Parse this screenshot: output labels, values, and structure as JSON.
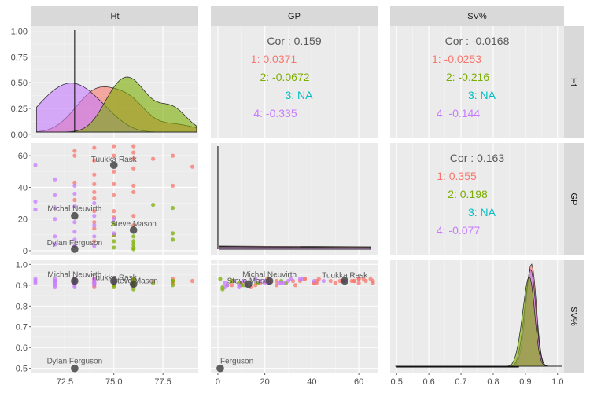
{
  "chart_data": {
    "type": "scatter",
    "variables": [
      "Ht",
      "GP",
      "SV%"
    ],
    "axes": {
      "Ht": {
        "range": [
          70.8,
          79.3
        ],
        "ticks": [
          72.5,
          75.0,
          77.5
        ],
        "tick_labels": [
          "72.5",
          "75.0",
          "77.5"
        ]
      },
      "GP": {
        "range": [
          -3,
          68
        ],
        "ticks": [
          0,
          20,
          40,
          60
        ],
        "tick_labels": [
          "0",
          "20",
          "40",
          "60"
        ]
      },
      "SV%": {
        "range": [
          0.48,
          1.02
        ],
        "ticks": [
          0.5,
          0.6,
          0.7,
          0.8,
          0.9,
          1.0
        ],
        "tick_labels": [
          "0.5",
          "0.6",
          "0.7",
          "0.8",
          "0.9",
          "1.0"
        ],
        "left_tick_labels": [
          "0.5",
          "0.6",
          "0.7",
          "0.8",
          "0.9",
          "1.0"
        ]
      },
      "density": {
        "range": [
          -0.04,
          1.05
        ],
        "ticks": [
          0.0,
          0.25,
          0.5,
          0.75,
          1.0
        ],
        "tick_labels": [
          "0.00",
          "0.25",
          "0.50",
          "0.75",
          "1.00"
        ]
      }
    },
    "grid": true,
    "legend": "none",
    "groups": [
      {
        "id": "1",
        "color": "#F8766D"
      },
      {
        "id": "2",
        "color": "#7CAE00"
      },
      {
        "id": "3",
        "color": "#00BFC4"
      },
      {
        "id": "4",
        "color": "#C77CFF"
      }
    ],
    "correlations": {
      "GP_Ht": {
        "overall": "Cor : 0.159",
        "groups": [
          "1: 0.0371",
          "2: -0.0672",
          "3: NA",
          "4: -0.335"
        ]
      },
      "SV_Ht": {
        "overall": "Cor : -0.0168",
        "groups": [
          "1: -0.0253",
          "2: -0.216",
          "3: NA",
          "4: -0.144"
        ]
      },
      "SV_GP": {
        "overall": "Cor : 0.163",
        "groups": [
          "1: 0.355",
          "2: 0.198",
          "3: NA",
          "4: -0.077"
        ]
      }
    },
    "points": [
      {
        "g": 1,
        "ht": 73,
        "gp": 63,
        "sv": 0.92
      },
      {
        "g": 1,
        "ht": 73,
        "gp": 60,
        "sv": 0.91
      },
      {
        "g": 1,
        "ht": 73,
        "gp": 43,
        "sv": 0.93
      },
      {
        "g": 1,
        "ht": 73,
        "gp": 32,
        "sv": 0.92
      },
      {
        "g": 1,
        "ht": 74,
        "gp": 65,
        "sv": 0.93
      },
      {
        "g": 1,
        "ht": 74,
        "gp": 57,
        "sv": 0.92
      },
      {
        "g": 1,
        "ht": 74,
        "gp": 48,
        "sv": 0.92
      },
      {
        "g": 1,
        "ht": 74,
        "gp": 42,
        "sv": 0.91
      },
      {
        "g": 1,
        "ht": 74,
        "gp": 37,
        "sv": 0.93
      },
      {
        "g": 1,
        "ht": 74,
        "gp": 33,
        "sv": 0.9
      },
      {
        "g": 1,
        "ht": 74,
        "gp": 25,
        "sv": 0.92
      },
      {
        "g": 1,
        "ht": 74,
        "gp": 18,
        "sv": 0.91
      },
      {
        "g": 1,
        "ht": 74,
        "gp": 14,
        "sv": 0.89
      },
      {
        "g": 1,
        "ht": 74,
        "gp": 6,
        "sv": 0.9
      },
      {
        "g": 1,
        "ht": 75,
        "gp": 66,
        "sv": 0.92
      },
      {
        "g": 1,
        "ht": 75,
        "gp": 60,
        "sv": 0.93
      },
      {
        "g": 1,
        "ht": 75,
        "gp": 50,
        "sv": 0.91
      },
      {
        "g": 1,
        "ht": 75,
        "gp": 42,
        "sv": 0.92
      },
      {
        "g": 1,
        "ht": 75,
        "gp": 35,
        "sv": 0.92
      },
      {
        "g": 1,
        "ht": 75,
        "gp": 25,
        "sv": 0.9
      },
      {
        "g": 1,
        "ht": 75,
        "gp": 21,
        "sv": 0.93
      },
      {
        "g": 1,
        "ht": 75,
        "gp": 10,
        "sv": 0.91
      },
      {
        "g": 1,
        "ht": 76,
        "gp": 66,
        "sv": 0.91
      },
      {
        "g": 1,
        "ht": 76,
        "gp": 62,
        "sv": 0.93
      },
      {
        "g": 1,
        "ht": 76,
        "gp": 58,
        "sv": 0.92
      },
      {
        "g": 1,
        "ht": 76,
        "gp": 52,
        "sv": 0.92
      },
      {
        "g": 1,
        "ht": 76,
        "gp": 41,
        "sv": 0.91
      },
      {
        "g": 1,
        "ht": 76,
        "gp": 37,
        "sv": 0.93
      },
      {
        "g": 1,
        "ht": 76,
        "gp": 22,
        "sv": 0.92
      },
      {
        "g": 1,
        "ht": 76,
        "gp": 16,
        "sv": 0.9
      },
      {
        "g": 1,
        "ht": 77,
        "gp": 58,
        "sv": 0.92
      },
      {
        "g": 1,
        "ht": 78,
        "gp": 60,
        "sv": 0.93
      },
      {
        "g": 1,
        "ht": 78,
        "gp": 41,
        "sv": 0.91
      },
      {
        "g": 1,
        "ht": 79,
        "gp": 53,
        "sv": 0.92
      },
      {
        "g": 2,
        "ht": 75,
        "gp": 17,
        "sv": 0.91
      },
      {
        "g": 2,
        "ht": 75,
        "gp": 10,
        "sv": 0.9
      },
      {
        "g": 2,
        "ht": 75,
        "gp": 6,
        "sv": 0.92
      },
      {
        "g": 2,
        "ht": 75,
        "gp": 2,
        "sv": 0.89
      },
      {
        "g": 2,
        "ht": 76,
        "gp": 9,
        "sv": 0.91
      },
      {
        "g": 2,
        "ht": 76,
        "gp": 6,
        "sv": 0.92
      },
      {
        "g": 2,
        "ht": 76,
        "gp": 4,
        "sv": 0.9
      },
      {
        "g": 2,
        "ht": 76,
        "gp": 2,
        "sv": 0.88
      },
      {
        "g": 2,
        "ht": 76,
        "gp": 1,
        "sv": 0.93
      },
      {
        "g": 2,
        "ht": 77,
        "gp": 29,
        "sv": 0.91
      },
      {
        "g": 2,
        "ht": 78,
        "gp": 27,
        "sv": 0.92
      },
      {
        "g": 2,
        "ht": 78,
        "gp": 11,
        "sv": 0.9
      },
      {
        "g": 2,
        "ht": 78,
        "gp": 7,
        "sv": 0.92
      },
      {
        "g": 4,
        "ht": 71,
        "gp": 54,
        "sv": 0.92
      },
      {
        "g": 4,
        "ht": 71,
        "gp": 31,
        "sv": 0.93
      },
      {
        "g": 4,
        "ht": 71,
        "gp": 26,
        "sv": 0.91
      },
      {
        "g": 4,
        "ht": 72,
        "gp": 45,
        "sv": 0.92
      },
      {
        "g": 4,
        "ht": 72,
        "gp": 35,
        "sv": 0.93
      },
      {
        "g": 4,
        "ht": 72,
        "gp": 27,
        "sv": 0.91
      },
      {
        "g": 4,
        "ht": 72,
        "gp": 20,
        "sv": 0.92
      },
      {
        "g": 4,
        "ht": 72,
        "gp": 9,
        "sv": 0.89
      },
      {
        "g": 4,
        "ht": 72,
        "gp": 4,
        "sv": 0.9
      },
      {
        "g": 4,
        "ht": 73,
        "gp": 41,
        "sv": 0.92
      },
      {
        "g": 4,
        "ht": 73,
        "gp": 36,
        "sv": 0.93
      },
      {
        "g": 4,
        "ht": 73,
        "gp": 28,
        "sv": 0.91
      },
      {
        "g": 4,
        "ht": 73,
        "gp": 18,
        "sv": 0.92
      },
      {
        "g": 4,
        "ht": 73,
        "gp": 12,
        "sv": 0.9
      },
      {
        "g": 4,
        "ht": 73,
        "gp": 7,
        "sv": 0.92
      },
      {
        "g": 4,
        "ht": 73,
        "gp": 3,
        "sv": 0.89
      },
      {
        "g": 4,
        "ht": 74,
        "gp": 30,
        "sv": 0.92
      },
      {
        "g": 4,
        "ht": 74,
        "gp": 22,
        "sv": 0.91
      },
      {
        "g": 4,
        "ht": 74,
        "gp": 16,
        "sv": 0.93
      },
      {
        "g": 4,
        "ht": 74,
        "gp": 9,
        "sv": 0.9
      },
      {
        "g": 4,
        "ht": 74,
        "gp": 3,
        "sv": 0.91
      },
      {
        "g": 4,
        "ht": 75,
        "gp": 20,
        "sv": 0.91
      },
      {
        "g": 4,
        "ht": 75,
        "gp": 11,
        "sv": 0.92
      }
    ],
    "highlighted": [
      {
        "name": "Tuukka Rask",
        "ht": 75,
        "gp": 54,
        "sv": 0.92,
        "label_ht": "Tuukka Rask",
        "label_gp": "Tuukka Rask",
        "label_sv": "Tuukka Rask"
      },
      {
        "name": "Michal Neuvirth",
        "ht": 73,
        "gp": 22,
        "sv": 0.92,
        "label_ht": "Michal Neuvirth",
        "label_gp": "Michal Neuvirth",
        "label_sv": "Michal Neuvirth"
      },
      {
        "name": "Steve Mason",
        "ht": 76,
        "gp": 13,
        "sv": 0.905,
        "label_ht": "Steve Mason",
        "label_gp": "Steve Mason",
        "label_sv": "Steve Mason"
      },
      {
        "name": "Dylan Ferguson",
        "ht": 73,
        "gp": 1,
        "sv": 0.5,
        "label_ht": "Dylan Ferguson",
        "label_gp": "Ferguson",
        "label_sv": "Dylan Ferguson"
      }
    ]
  }
}
